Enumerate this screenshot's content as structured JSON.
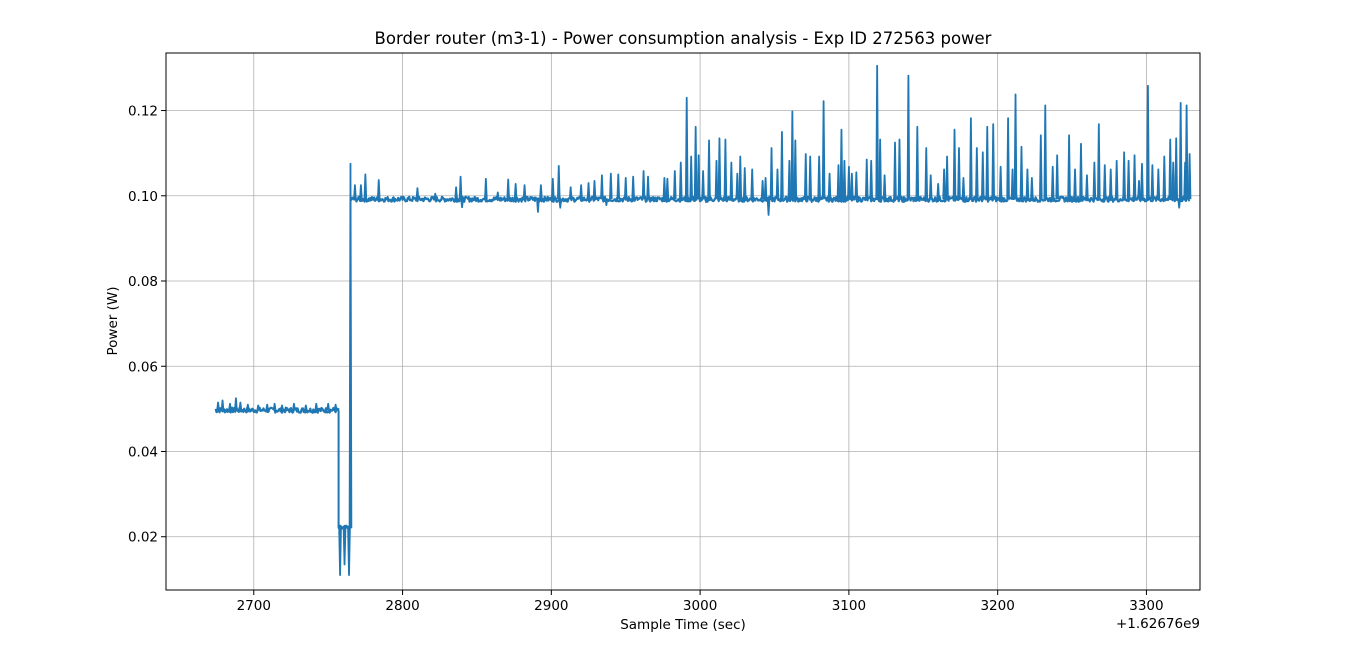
{
  "chart_data": {
    "type": "line",
    "title": "Border router (m3-1) - Power consumption analysis - Exp ID 272563 power",
    "xlabel": "Sample Time (sec)",
    "ylabel": "Power (W)",
    "x_offset_label": "+1.62676e9",
    "xlim": [
      2641,
      3336
    ],
    "ylim": [
      0.0075,
      0.1335
    ],
    "xticks": [
      2700,
      2800,
      2900,
      3000,
      3100,
      3200,
      3300
    ],
    "yticks": [
      0.02,
      0.04,
      0.06,
      0.08,
      0.1,
      0.12
    ],
    "xtick_labels": [
      "2700",
      "2800",
      "2900",
      "3000",
      "3100",
      "3200",
      "3300"
    ],
    "ytick_labels": [
      "0.02",
      "0.04",
      "0.06",
      "0.08",
      "0.10",
      "0.12"
    ],
    "grid": true,
    "line_color": "#1f77b4",
    "series": [
      {
        "baseline": [
          {
            "start": 2674,
            "end": 2757,
            "value": 0.0497
          },
          {
            "start": 2757,
            "end": 2765,
            "value": 0.022
          },
          {
            "start": 2765,
            "end": 3329,
            "value": 0.0992
          }
        ],
        "spikes": [
          [
            2676,
            0.0515
          ],
          [
            2679,
            0.052
          ],
          [
            2684,
            0.0512
          ],
          [
            2688,
            0.0525
          ],
          [
            2691,
            0.0515
          ],
          [
            2696,
            0.051
          ],
          [
            2703,
            0.0508
          ],
          [
            2709,
            0.051
          ],
          [
            2714,
            0.0512
          ],
          [
            2719,
            0.0508
          ],
          [
            2727,
            0.0512
          ],
          [
            2735,
            0.0508
          ],
          [
            2742,
            0.0512
          ],
          [
            2750,
            0.0512
          ],
          [
            2755,
            0.051
          ],
          [
            2758,
            0.011
          ],
          [
            2761,
            0.0135
          ],
          [
            2764,
            0.011
          ],
          [
            2765,
            0.1075
          ],
          [
            2768,
            0.1025
          ],
          [
            2772,
            0.1025
          ],
          [
            2775,
            0.105
          ],
          [
            2784,
            0.1037
          ],
          [
            2810,
            0.1018
          ],
          [
            2822,
            0.1005
          ],
          [
            2836,
            0.102
          ],
          [
            2839,
            0.1045
          ],
          [
            2840,
            0.0973
          ],
          [
            2856,
            0.104
          ],
          [
            2864,
            0.1008
          ],
          [
            2871,
            0.1038
          ],
          [
            2876,
            0.1028
          ],
          [
            2882,
            0.1025
          ],
          [
            2891,
            0.0962
          ],
          [
            2893,
            0.1025
          ],
          [
            2901,
            0.104
          ],
          [
            2905,
            0.107
          ],
          [
            2906,
            0.0972
          ],
          [
            2913,
            0.102
          ],
          [
            2920,
            0.1025
          ],
          [
            2925,
            0.103
          ],
          [
            2929,
            0.1035
          ],
          [
            2934,
            0.1048
          ],
          [
            2937,
            0.0978
          ],
          [
            2940,
            0.1052
          ],
          [
            2945,
            0.105
          ],
          [
            2950,
            0.1042
          ],
          [
            2955,
            0.1045
          ],
          [
            2962,
            0.1058
          ],
          [
            2965,
            0.1045
          ],
          [
            2976,
            0.1042
          ],
          [
            2978,
            0.104
          ],
          [
            2983,
            0.1058
          ],
          [
            2987,
            0.1078
          ],
          [
            2991,
            0.123
          ],
          [
            2994,
            0.1092
          ],
          [
            2997,
            0.1162
          ],
          [
            2999,
            0.1095
          ],
          [
            3002,
            0.1058
          ],
          [
            3004,
            0.0985
          ],
          [
            3006,
            0.113
          ],
          [
            3011,
            0.1082
          ],
          [
            3013,
            0.1135
          ],
          [
            3017,
            0.1132
          ],
          [
            3021,
            0.1078
          ],
          [
            3025,
            0.1052
          ],
          [
            3027,
            0.1092
          ],
          [
            3030,
            0.1065
          ],
          [
            3035,
            0.1062
          ],
          [
            3042,
            0.1035
          ],
          [
            3044,
            0.1042
          ],
          [
            3046,
            0.0955
          ],
          [
            3048,
            0.1112
          ],
          [
            3052,
            0.1062
          ],
          [
            3055,
            0.115
          ],
          [
            3060,
            0.1082
          ],
          [
            3062,
            0.1198
          ],
          [
            3064,
            0.113
          ],
          [
            3071,
            0.1098
          ],
          [
            3074,
            0.1092
          ],
          [
            3075,
            0.0985
          ],
          [
            3080,
            0.1092
          ],
          [
            3083,
            0.1222
          ],
          [
            3087,
            0.1052
          ],
          [
            3093,
            0.1072
          ],
          [
            3095,
            0.1155
          ],
          [
            3097,
            0.1082
          ],
          [
            3100,
            0.1068
          ],
          [
            3102,
            0.1052
          ],
          [
            3105,
            0.1055
          ],
          [
            3112,
            0.1085
          ],
          [
            3115,
            0.1082
          ],
          [
            3119,
            0.1305
          ],
          [
            3121,
            0.1132
          ],
          [
            3124,
            0.1048
          ],
          [
            3131,
            0.1125
          ],
          [
            3134,
            0.1132
          ],
          [
            3137,
            0.0985
          ],
          [
            3140,
            0.1282
          ],
          [
            3146,
            0.1162
          ],
          [
            3152,
            0.1112
          ],
          [
            3155,
            0.1048
          ],
          [
            3160,
            0.1028
          ],
          [
            3164,
            0.1062
          ],
          [
            3166,
            0.1092
          ],
          [
            3171,
            0.1155
          ],
          [
            3174,
            0.1112
          ],
          [
            3177,
            0.1042
          ],
          [
            3178,
            0.0985
          ],
          [
            3182,
            0.1182
          ],
          [
            3186,
            0.1112
          ],
          [
            3190,
            0.1102
          ],
          [
            3193,
            0.1162
          ],
          [
            3197,
            0.1168
          ],
          [
            3202,
            0.1068
          ],
          [
            3207,
            0.1182
          ],
          [
            3210,
            0.1062
          ],
          [
            3212,
            0.1238
          ],
          [
            3216,
            0.1115
          ],
          [
            3220,
            0.1062
          ],
          [
            3223,
            0.1042
          ],
          [
            3229,
            0.1142
          ],
          [
            3232,
            0.1212
          ],
          [
            3237,
            0.1068
          ],
          [
            3240,
            0.1095
          ],
          [
            3248,
            0.1142
          ],
          [
            3252,
            0.1062
          ],
          [
            3256,
            0.1122
          ],
          [
            3260,
            0.1048
          ],
          [
            3265,
            0.1078
          ],
          [
            3268,
            0.1168
          ],
          [
            3272,
            0.1072
          ],
          [
            3276,
            0.1062
          ],
          [
            3280,
            0.1082
          ],
          [
            3285,
            0.1102
          ],
          [
            3288,
            0.1082
          ],
          [
            3292,
            0.1095
          ],
          [
            3295,
            0.1035
          ],
          [
            3297,
            0.1075
          ],
          [
            3301,
            0.1258
          ],
          [
            3304,
            0.1072
          ],
          [
            3308,
            0.1062
          ],
          [
            3312,
            0.1092
          ],
          [
            3316,
            0.1132
          ],
          [
            3318,
            0.1078
          ],
          [
            3320,
            0.1135
          ],
          [
            3322,
            0.0972
          ],
          [
            3323,
            0.1218
          ],
          [
            3326,
            0.1078
          ],
          [
            3327,
            0.1212
          ],
          [
            3329,
            0.1098
          ]
        ]
      }
    ]
  }
}
